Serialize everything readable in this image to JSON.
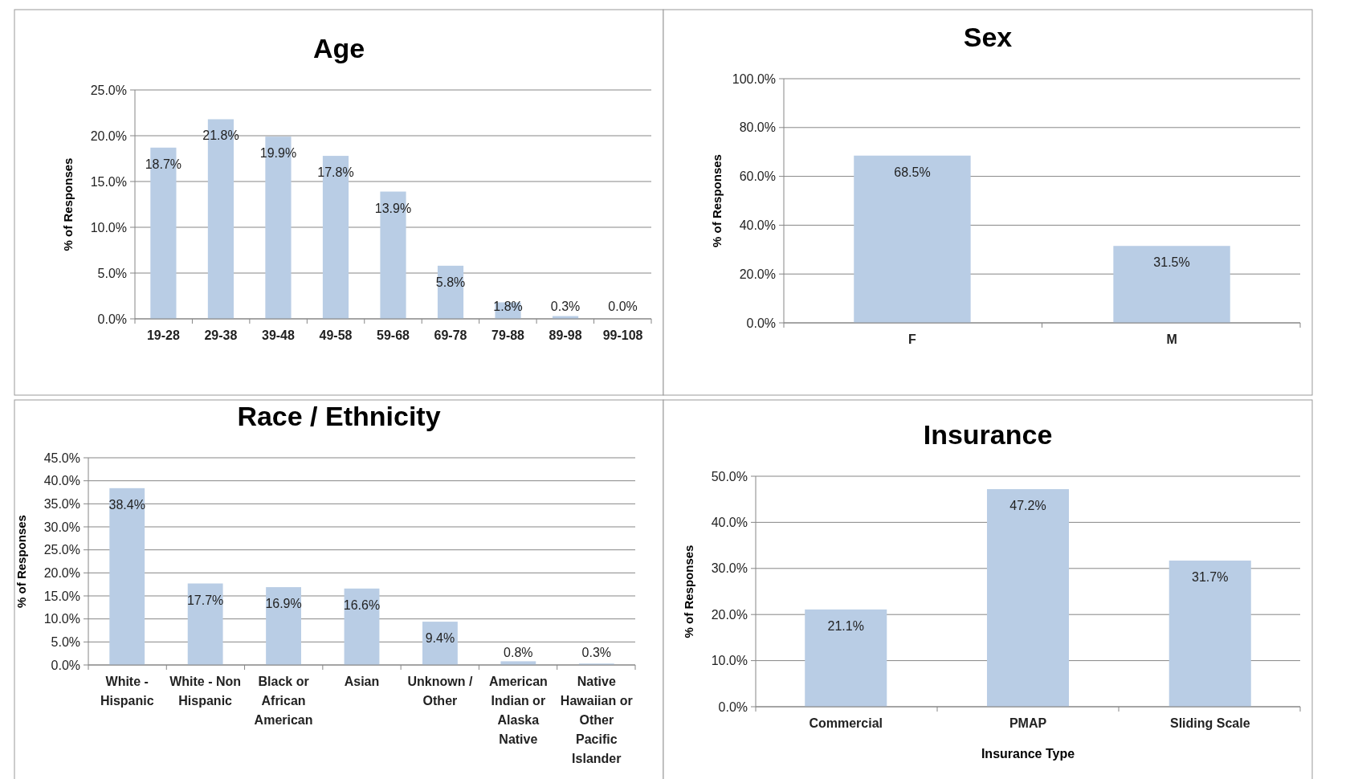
{
  "chart_data": [
    {
      "type": "bar",
      "title": "Age",
      "ylabel": "% of Responses",
      "categories": [
        "19-28",
        "29-38",
        "39-48",
        "49-58",
        "59-68",
        "69-78",
        "79-88",
        "89-98",
        "99-108"
      ],
      "values": [
        18.7,
        21.8,
        19.9,
        17.8,
        13.9,
        5.8,
        1.8,
        0.3,
        0.0
      ],
      "value_labels": [
        "18.7%",
        "21.8%",
        "19.9%",
        "17.8%",
        "13.9%",
        "5.8%",
        "1.8%",
        "0.3%",
        "0.0%"
      ],
      "color": "#b9cde5",
      "ylim": [
        0,
        25
      ],
      "yticks": [
        {
          "value": 0,
          "label": "0.0%"
        },
        {
          "value": 5,
          "label": "5.0%"
        },
        {
          "value": 10,
          "label": "10.0%"
        },
        {
          "value": 15,
          "label": "15.0%"
        },
        {
          "value": 20,
          "label": "20.0%"
        },
        {
          "value": 25,
          "label": "25.0%"
        }
      ],
      "grid": "y"
    },
    {
      "type": "bar",
      "title": "Sex",
      "ylabel": "% of Responses",
      "categories": [
        "F",
        "M"
      ],
      "values": [
        68.5,
        31.5
      ],
      "value_labels": [
        "68.5%",
        "31.5%"
      ],
      "color": "#b9cde5",
      "ylim": [
        0,
        100
      ],
      "yticks": [
        {
          "value": 0,
          "label": "0.0%"
        },
        {
          "value": 20,
          "label": "20.0%"
        },
        {
          "value": 40,
          "label": "40.0%"
        },
        {
          "value": 60,
          "label": "60.0%"
        },
        {
          "value": 80,
          "label": "80.0%"
        },
        {
          "value": 100,
          "label": "100.0%"
        }
      ],
      "grid": "y"
    },
    {
      "type": "bar",
      "title": "Race / Ethnicity",
      "ylabel": "% of Responses",
      "categories": [
        "White - Hispanic",
        "White - Non Hispanic",
        "Black or African American",
        "Asian",
        "Unknown / Other",
        "American Indian or Alaska Native",
        "Native Hawaiian or Other Pacific Islander"
      ],
      "values": [
        38.4,
        17.7,
        16.9,
        16.6,
        9.4,
        0.8,
        0.3
      ],
      "value_labels": [
        "38.4%",
        "17.7%",
        "16.9%",
        "16.6%",
        "9.4%",
        "0.8%",
        "0.3%"
      ],
      "color": "#b9cde5",
      "ylim": [
        0,
        45
      ],
      "yticks": [
        {
          "value": 0,
          "label": "0.0%"
        },
        {
          "value": 5,
          "label": "5.0%"
        },
        {
          "value": 10,
          "label": "10.0%"
        },
        {
          "value": 15,
          "label": "15.0%"
        },
        {
          "value": 20,
          "label": "20.0%"
        },
        {
          "value": 25,
          "label": "25.0%"
        },
        {
          "value": 30,
          "label": "30.0%"
        },
        {
          "value": 35,
          "label": "35.0%"
        },
        {
          "value": 40,
          "label": "40.0%"
        },
        {
          "value": 45,
          "label": "45.0%"
        }
      ],
      "grid": "y"
    },
    {
      "type": "bar",
      "title": "Insurance",
      "ylabel": "% of Responses",
      "xlabel": "Insurance Type",
      "categories": [
        "Commercial",
        "PMAP",
        "Sliding Scale"
      ],
      "values": [
        21.1,
        47.2,
        31.7
      ],
      "value_labels": [
        "21.1%",
        "47.2%",
        "31.7%"
      ],
      "color": "#b9cde5",
      "ylim": [
        0,
        50
      ],
      "yticks": [
        {
          "value": 0,
          "label": "0.0%"
        },
        {
          "value": 10,
          "label": "10.0%"
        },
        {
          "value": 20,
          "label": "20.0%"
        },
        {
          "value": 30,
          "label": "30.0%"
        },
        {
          "value": 40,
          "label": "40.0%"
        },
        {
          "value": 50,
          "label": "50.0%"
        }
      ],
      "grid": "y"
    }
  ]
}
